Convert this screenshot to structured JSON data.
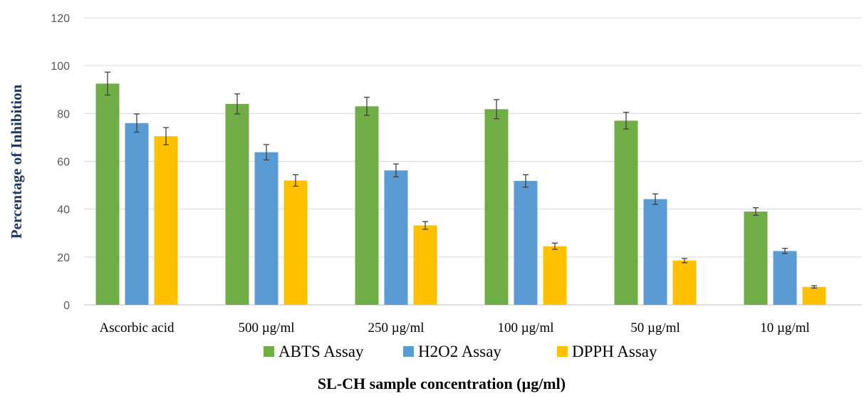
{
  "chart_data": {
    "type": "bar",
    "xlabel": "SL-CH sample concentration (µg/ml)",
    "ylabel": "Percentage of Inhibition",
    "ylim": [
      0,
      120
    ],
    "yticks": [
      "0",
      "20",
      "40",
      "60",
      "80",
      "100",
      "120"
    ],
    "grid": true,
    "legend_position": "bottom",
    "categories": [
      "Ascorbic acid",
      "500 µg/ml",
      "250 µg/ml",
      "100 µg/ml",
      "50 µg/ml",
      "10 µg/ml"
    ],
    "series": [
      {
        "name": "ABTS Assay",
        "color": "#70ad47",
        "values": [
          92.5,
          84,
          83,
          81.8,
          77,
          39
        ],
        "errors": [
          4.8,
          4.2,
          3.8,
          4.0,
          3.5,
          1.6
        ]
      },
      {
        "name": "H2O2 Assay",
        "color": "#5b9bd5",
        "values": [
          76,
          63.8,
          56.2,
          51.8,
          44.2,
          22.5
        ],
        "errors": [
          3.8,
          3.2,
          2.7,
          2.6,
          2.2,
          1.1
        ]
      },
      {
        "name": "DPPH Assay",
        "color": "#ffc000",
        "values": [
          70.5,
          52,
          33.2,
          24.5,
          18.5,
          7.5
        ],
        "errors": [
          3.6,
          2.4,
          1.6,
          1.3,
          0.9,
          0.5
        ]
      }
    ]
  }
}
